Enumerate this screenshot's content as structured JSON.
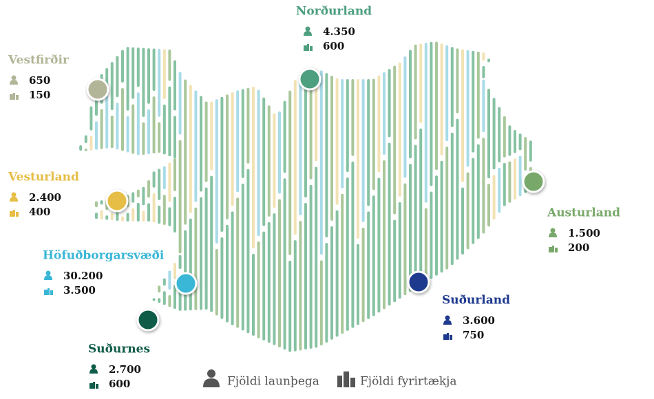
{
  "regions": [
    {
      "name": "Norðurland",
      "employees": "4.350",
      "companies": "600",
      "color": "#4e9e80"
    },
    {
      "name": "Vestfirðir",
      "employees": "650",
      "companies": "150",
      "color": "#b2b597"
    },
    {
      "name": "Vesturland",
      "employees": "2.400",
      "companies": "400",
      "color": "#e6bd45"
    },
    {
      "name": "Höfuðborgarsvæði",
      "employees": "30.200",
      "companies": "3.500",
      "color": "#3ab6d6"
    },
    {
      "name": "Suðurnes",
      "employees": "2.700",
      "companies": "600",
      "color": "#0f5c48"
    },
    {
      "name": "Suðurland",
      "employees": "3.600",
      "companies": "750",
      "color": "#1e3a8e"
    },
    {
      "name": "Austurland",
      "employees": "1.500",
      "companies": "200",
      "color": "#79a96a"
    }
  ],
  "legend": {
    "employees": "Fjöldi launþega",
    "companies": "Fjöldi fyrirtækja"
  }
}
